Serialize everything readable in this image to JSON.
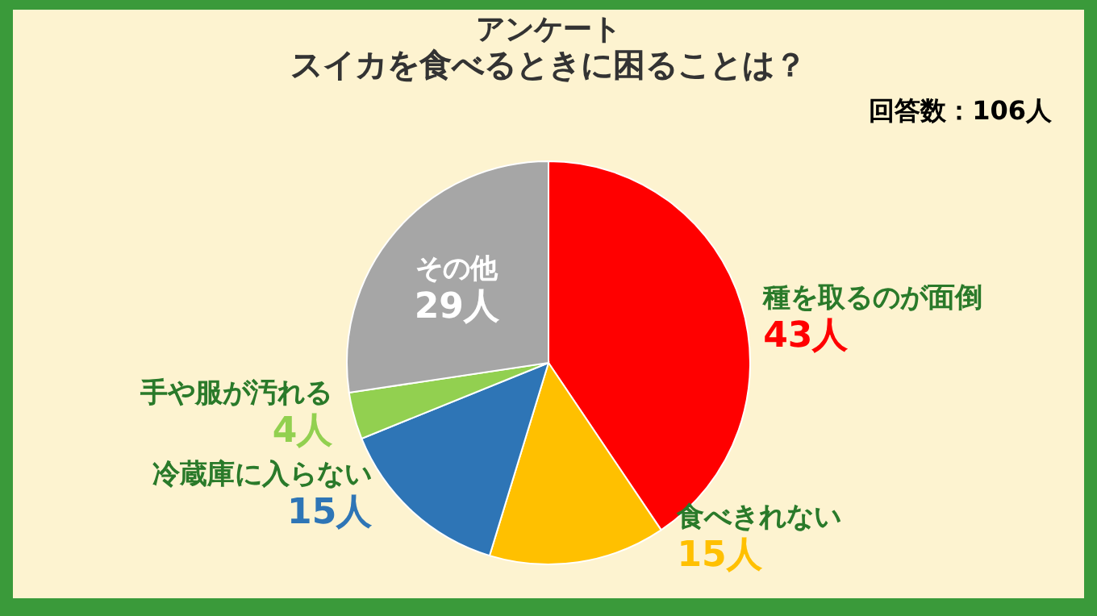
{
  "chart_data": {
    "type": "pie",
    "title": "アンケート",
    "subtitle": "スイカを食べるときに困ることは？",
    "categories": [
      "種を取るのが面倒",
      "食べきれない",
      "冷蔵庫に入らない",
      "手や服が汚れる",
      "その他"
    ],
    "values": [
      43,
      15,
      15,
      4,
      29
    ],
    "value_labels": [
      "43人",
      "15人",
      "15人",
      "4人",
      "29人"
    ],
    "colors": [
      "#ff0000",
      "#ffc000",
      "#2e75b6",
      "#92d050",
      "#a6a6a6"
    ],
    "annotations": [
      "回答数：106人"
    ],
    "legend": false
  }
}
